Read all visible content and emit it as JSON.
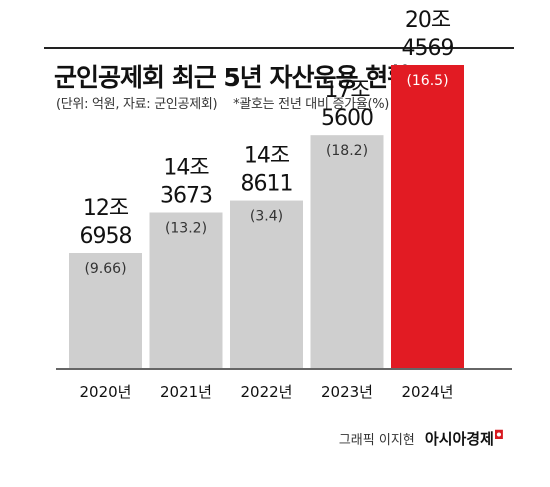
{
  "header": {
    "title": "군인공제회 최근 5년 자산운용 현황",
    "unit_note": "(단위: 억원, 자료: 군인공제회)",
    "paren_note": "*괄호는 전년 대비 증가율(%)"
  },
  "credit": {
    "graphic": "그래픽 이지현",
    "brand": "아시아경제"
  },
  "colors": {
    "bar": "#cfcfcf",
    "highlight": "#e21b23",
    "text": "#111111",
    "axis": "#333333"
  },
  "chart_data": {
    "type": "bar",
    "title": "군인공제회 최근 5년 자산운용 현황",
    "xlabel": "",
    "ylabel": "",
    "categories": [
      "2020년",
      "2021년",
      "2022년",
      "2023년",
      "2024년"
    ],
    "values": [
      126958,
      143673,
      148611,
      175600,
      204569
    ],
    "labels_line1": [
      "12조",
      "14조",
      "14조",
      "17조",
      "20조"
    ],
    "labels_line2": [
      "6958",
      "3673",
      "8611",
      "5600",
      "4569"
    ],
    "growth_labels": [
      "(9.66)",
      "(13.2)",
      "(3.4)",
      "(18.2)",
      "(16.5)"
    ],
    "growth": [
      9.66,
      13.2,
      3.4,
      18.2,
      16.5
    ],
    "highlight_index": 4,
    "grid": false
  }
}
